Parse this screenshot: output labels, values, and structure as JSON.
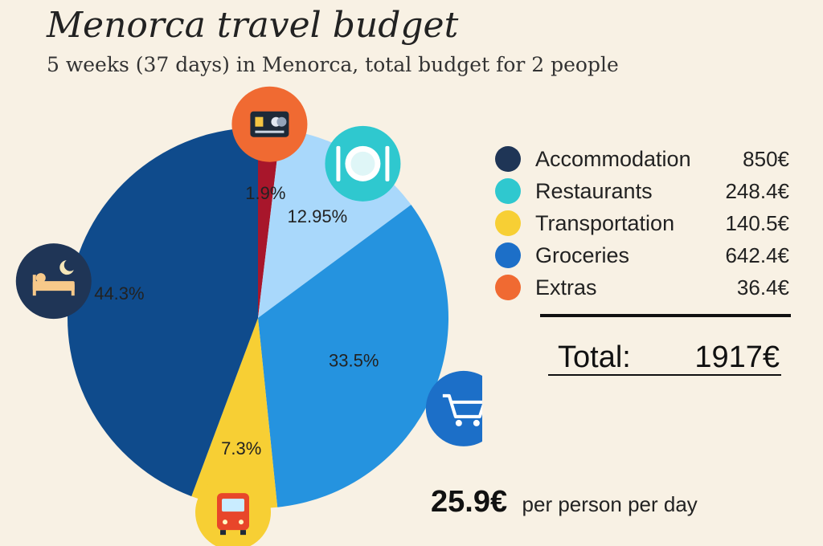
{
  "title": "Menorca travel budget",
  "subtitle": "5 weeks (37 days) in Menorca, total budget for 2 people",
  "chart_data": {
    "type": "pie",
    "title": "Menorca travel budget",
    "subtitle": "5 weeks (37 days) in Menorca, total budget for 2 people",
    "slices": [
      {
        "label": "Extras",
        "percent_label": "1.9%",
        "percent": 1.9,
        "color": "#a8162b",
        "icon": "credit-card-icon",
        "icon_color": "#f06a32"
      },
      {
        "label": "Restaurants",
        "percent_label": "12.95%",
        "percent": 12.95,
        "color": "#a9d8fb",
        "icon": "plate-cutlery-icon",
        "icon_color": "#2fc8cf"
      },
      {
        "label": "Groceries",
        "percent_label": "33.5%",
        "percent": 33.5,
        "color": "#2593df",
        "icon": "shopping-cart-icon",
        "icon_color": "#1c6fc8"
      },
      {
        "label": "Transportation",
        "percent_label": "7.3%",
        "percent": 7.3,
        "color": "#f7cf34",
        "icon": "bus-icon",
        "icon_color": "#f7cf34"
      },
      {
        "label": "Accommodation",
        "percent_label": "44.3%",
        "percent": 44.3,
        "color": "#0f4b8c",
        "icon": "bed-moon-icon",
        "icon_color": "#1f3556"
      }
    ]
  },
  "legend": [
    {
      "name": "Accommodation",
      "value": "850€",
      "icon": "bed-moon-icon",
      "color": "#1f3556"
    },
    {
      "name": "Restaurants",
      "value": "248.4€",
      "icon": "plate-cutlery-icon",
      "color": "#2fc8cf"
    },
    {
      "name": "Transportation",
      "value": "140.5€",
      "icon": "bus-icon",
      "color": "#f7cf34"
    },
    {
      "name": "Groceries",
      "value": "642.4€",
      "icon": "shopping-cart-icon",
      "color": "#1c6fc8"
    },
    {
      "name": "Extras",
      "value": "36.4€",
      "icon": "credit-card-icon",
      "color": "#f06a32"
    }
  ],
  "total": {
    "label": "Total:",
    "value": "1917€"
  },
  "per_day": {
    "value": "25.9€",
    "label": "per person per day"
  }
}
